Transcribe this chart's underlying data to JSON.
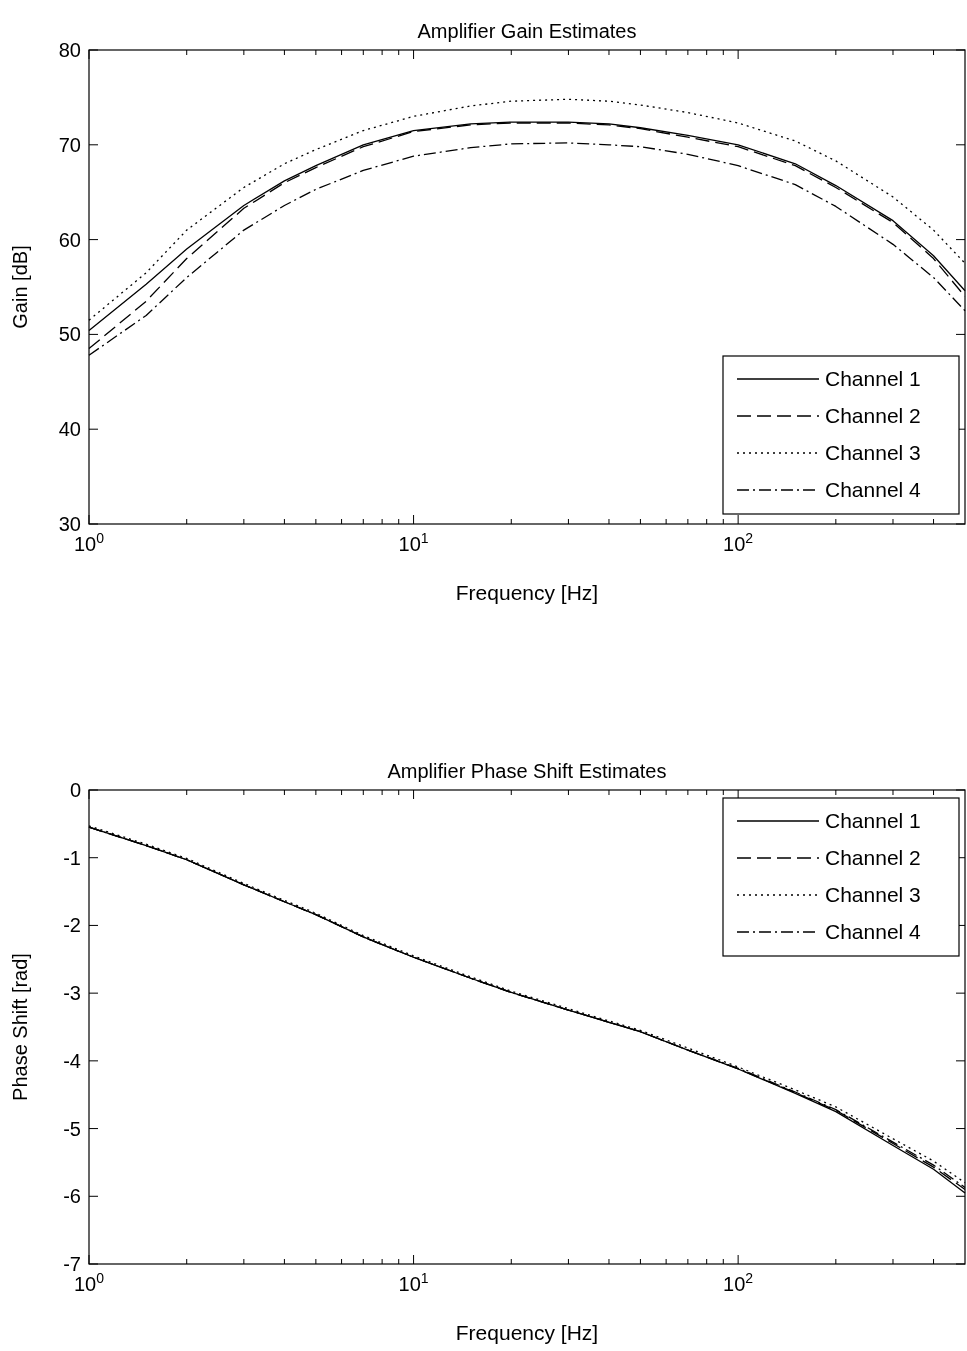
{
  "chart_data": [
    {
      "type": "line",
      "title": "Amplifier Gain Estimates",
      "xlabel": "Frequency [Hz]",
      "ylabel": "Gain [dB]",
      "log": "x",
      "xlim": [
        1,
        500
      ],
      "ylim": [
        30,
        80
      ],
      "xticks": [
        {
          "value": 1,
          "label": "10$^{0}$"
        },
        {
          "value": 2,
          "label": null
        },
        {
          "value": 3,
          "label": null
        },
        {
          "value": 4,
          "label": null
        },
        {
          "value": 5,
          "label": null
        },
        {
          "value": 6,
          "label": null
        },
        {
          "value": 7,
          "label": null
        },
        {
          "value": 8,
          "label": null
        },
        {
          "value": 9,
          "label": null
        },
        {
          "value": 10,
          "label": "10$^{1}$"
        },
        {
          "value": 20,
          "label": null
        },
        {
          "value": 30,
          "label": null
        },
        {
          "value": 40,
          "label": null
        },
        {
          "value": 50,
          "label": null
        },
        {
          "value": 60,
          "label": null
        },
        {
          "value": 70,
          "label": null
        },
        {
          "value": 80,
          "label": null
        },
        {
          "value": 90,
          "label": null
        },
        {
          "value": 100,
          "label": "10$^{2}$"
        },
        {
          "value": 200,
          "label": null
        },
        {
          "value": 300,
          "label": null
        },
        {
          "value": 400,
          "label": null
        }
      ],
      "yticks": [
        30,
        40,
        50,
        60,
        70,
        80
      ],
      "grid": false,
      "legend": "bottom right",
      "x": [
        1,
        1.5,
        2,
        3,
        4,
        5,
        7,
        10,
        15,
        20,
        30,
        40,
        50,
        70,
        100,
        150,
        200,
        300,
        400,
        500
      ],
      "series": [
        {
          "name": "Channel 1",
          "color": "#000000",
          "line_style": "solid",
          "values": [
            50.4,
            55.3,
            59,
            63.6,
            66.2,
            67.8,
            70,
            71.5,
            72.2,
            72.4,
            72.4,
            72.2,
            71.8,
            71,
            70,
            68,
            65.7,
            62,
            58.3,
            54.6
          ]
        },
        {
          "name": "Channel 2",
          "color": "#000000",
          "line_style": "dashed",
          "values": [
            48.5,
            53.5,
            58,
            63.3,
            66,
            67.6,
            69.8,
            71.4,
            72.1,
            72.3,
            72.3,
            72.1,
            71.7,
            70.8,
            69.8,
            67.8,
            65.5,
            61.8,
            58,
            54
          ]
        },
        {
          "name": "Channel 3",
          "color": "#000000",
          "line_style": "dotted",
          "values": [
            51.5,
            56.5,
            61,
            65.5,
            68,
            69.5,
            71.5,
            73,
            74.1,
            74.6,
            74.8,
            74.6,
            74.2,
            73.4,
            72.3,
            70.4,
            68.3,
            64.5,
            61,
            57.5
          ]
        },
        {
          "name": "Channel 4",
          "color": "#000000",
          "line_style": "dashdot",
          "values": [
            47.8,
            52,
            56,
            61,
            63.6,
            65.3,
            67.3,
            68.8,
            69.7,
            70.1,
            70.2,
            70,
            69.8,
            69,
            67.8,
            65.8,
            63.5,
            59.5,
            56,
            52.5
          ]
        }
      ]
    },
    {
      "type": "line",
      "title": "Amplifier Phase Shift Estimates",
      "xlabel": "Frequency [Hz]",
      "ylabel": "Phase Shift [rad]",
      "log": "x",
      "xlim": [
        1,
        500
      ],
      "ylim": [
        -7,
        0
      ],
      "xticks": [
        {
          "value": 1,
          "label": "10$^{0}$"
        },
        {
          "value": 2,
          "label": null
        },
        {
          "value": 3,
          "label": null
        },
        {
          "value": 4,
          "label": null
        },
        {
          "value": 5,
          "label": null
        },
        {
          "value": 6,
          "label": null
        },
        {
          "value": 7,
          "label": null
        },
        {
          "value": 8,
          "label": null
        },
        {
          "value": 9,
          "label": null
        },
        {
          "value": 10,
          "label": "10$^{1}$"
        },
        {
          "value": 20,
          "label": null
        },
        {
          "value": 30,
          "label": null
        },
        {
          "value": 40,
          "label": null
        },
        {
          "value": 50,
          "label": null
        },
        {
          "value": 60,
          "label": null
        },
        {
          "value": 70,
          "label": null
        },
        {
          "value": 80,
          "label": null
        },
        {
          "value": 90,
          "label": null
        },
        {
          "value": 100,
          "label": "10$^{2}$"
        },
        {
          "value": 200,
          "label": null
        },
        {
          "value": 300,
          "label": null
        },
        {
          "value": 400,
          "label": null
        }
      ],
      "yticks": [
        -7,
        -6,
        -5,
        -4,
        -3,
        -2,
        -1,
        0
      ],
      "grid": false,
      "legend": "top right",
      "x": [
        1,
        1.5,
        2,
        3,
        4,
        5,
        7,
        10,
        15,
        20,
        30,
        40,
        50,
        70,
        100,
        150,
        200,
        300,
        400,
        500
      ],
      "series": [
        {
          "name": "Channel 1",
          "color": "#000000",
          "line_style": "solid",
          "values": [
            -0.55,
            -0.82,
            -1.03,
            -1.4,
            -1.65,
            -1.84,
            -2.17,
            -2.47,
            -2.78,
            -2.99,
            -3.25,
            -3.43,
            -3.57,
            -3.84,
            -4.12,
            -4.48,
            -4.75,
            -5.25,
            -5.6,
            -5.95
          ]
        },
        {
          "name": "Channel 2",
          "color": "#000000",
          "line_style": "dashed",
          "values": [
            -0.55,
            -0.82,
            -1.03,
            -1.4,
            -1.65,
            -1.84,
            -2.17,
            -2.47,
            -2.78,
            -2.99,
            -3.25,
            -3.43,
            -3.57,
            -3.84,
            -4.12,
            -4.47,
            -4.73,
            -5.22,
            -5.57,
            -5.9
          ]
        },
        {
          "name": "Channel 3",
          "color": "#000000",
          "line_style": "dotted",
          "values": [
            -0.53,
            -0.8,
            -1.01,
            -1.38,
            -1.63,
            -1.82,
            -2.15,
            -2.45,
            -2.76,
            -2.97,
            -3.23,
            -3.41,
            -3.55,
            -3.81,
            -4.09,
            -4.43,
            -4.68,
            -5.15,
            -5.48,
            -5.8
          ]
        },
        {
          "name": "Channel 4",
          "color": "#000000",
          "line_style": "dashdot",
          "values": [
            -0.55,
            -0.82,
            -1.03,
            -1.4,
            -1.65,
            -1.84,
            -2.17,
            -2.47,
            -2.78,
            -2.99,
            -3.25,
            -3.43,
            -3.57,
            -3.84,
            -4.11,
            -4.46,
            -4.72,
            -5.2,
            -5.54,
            -5.87
          ]
        }
      ]
    }
  ]
}
